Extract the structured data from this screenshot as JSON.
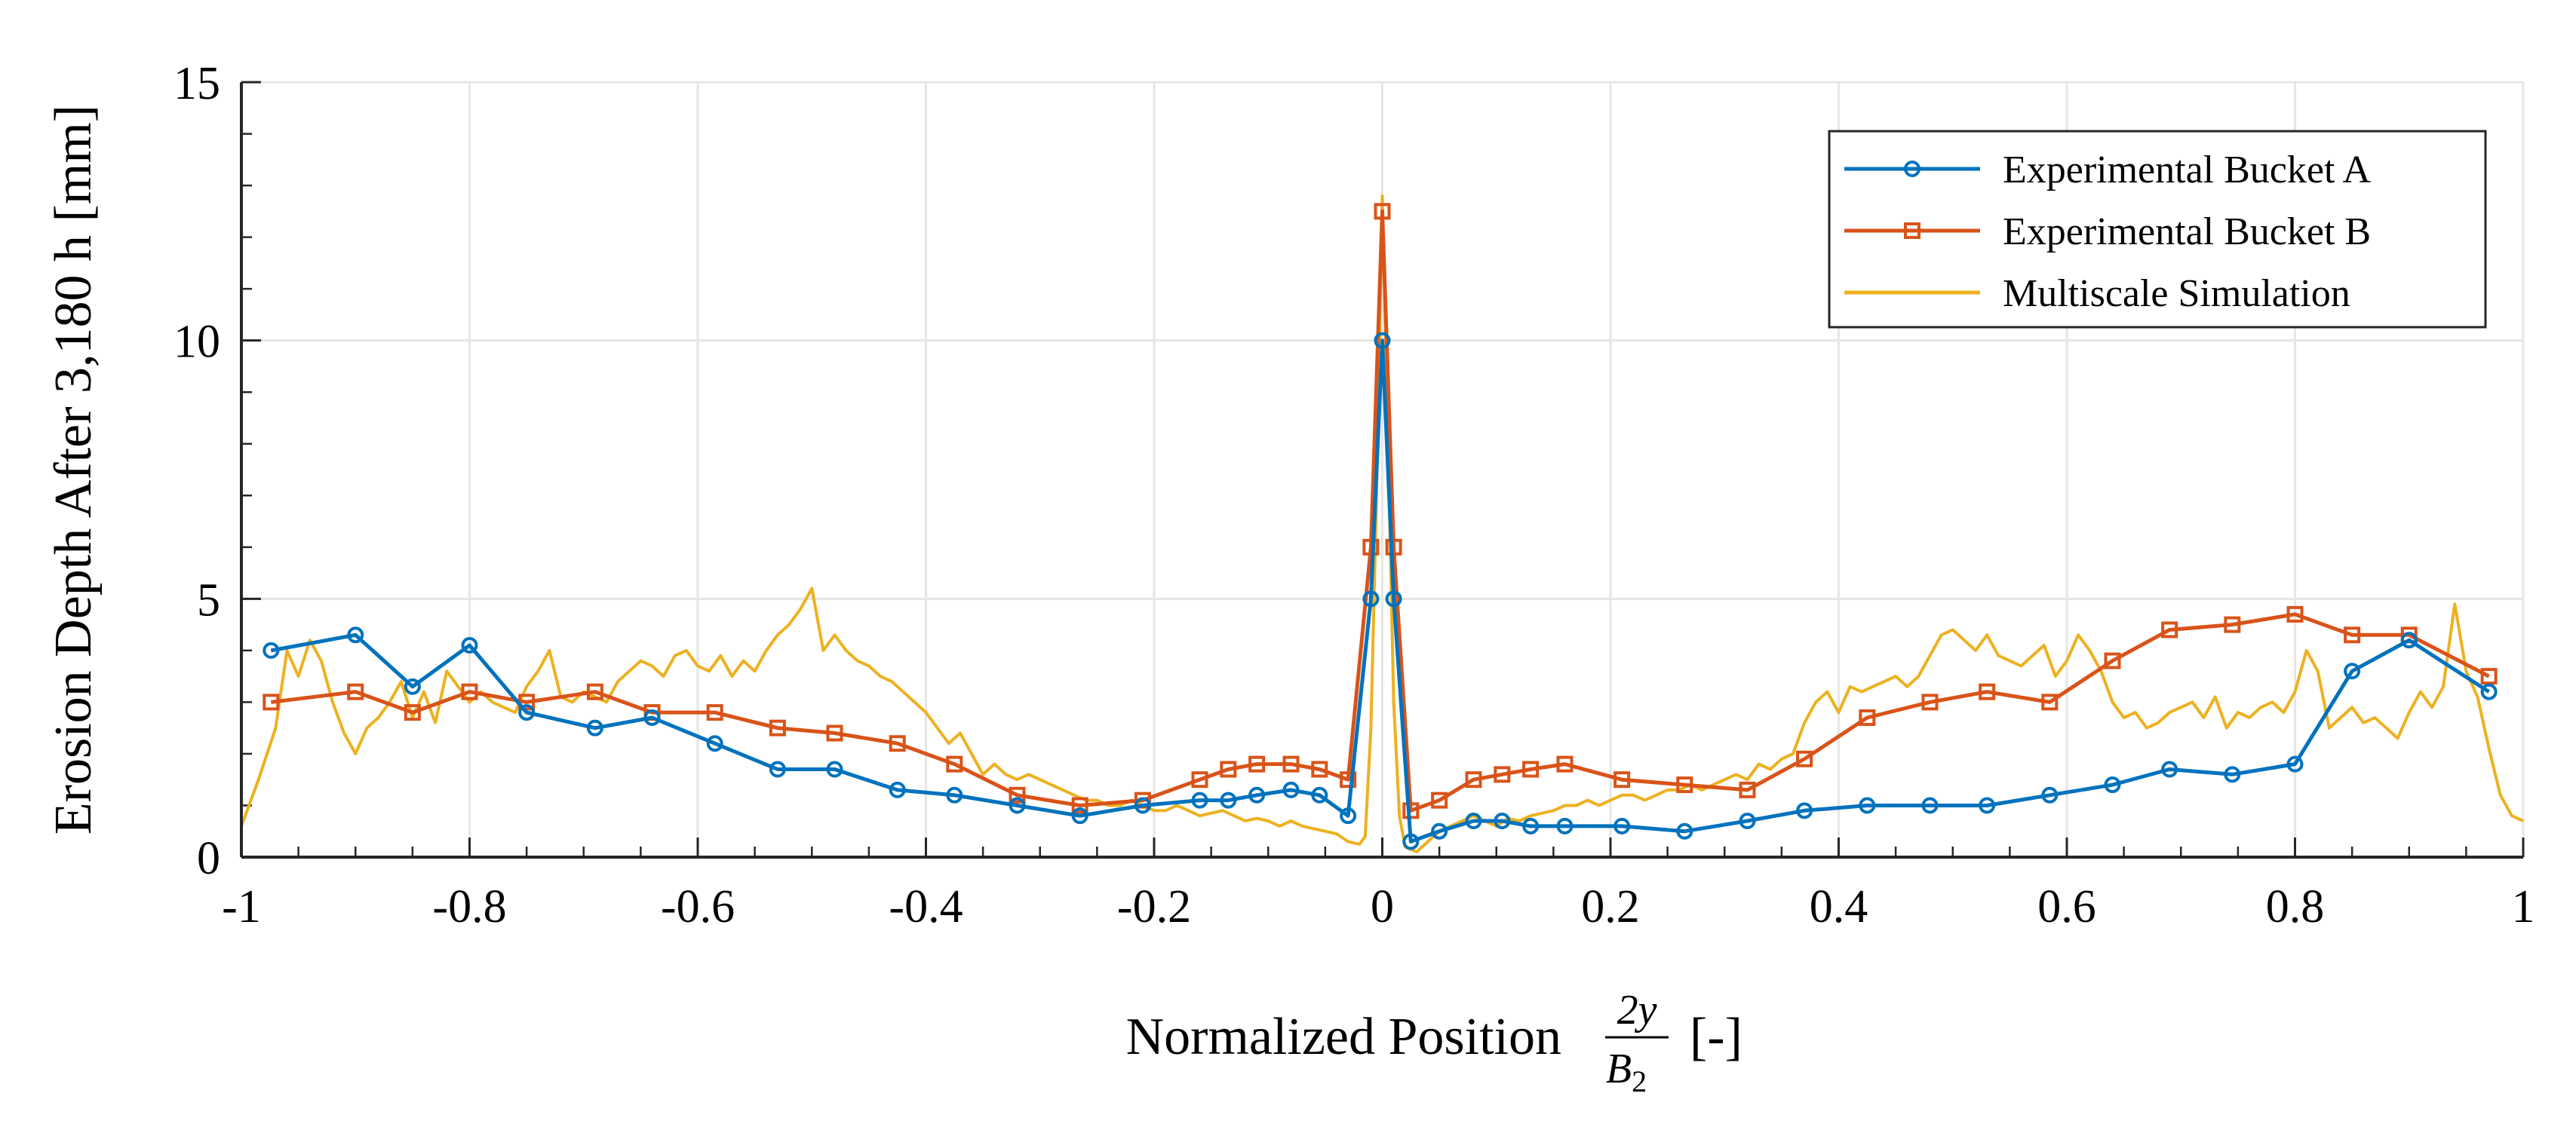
{
  "chart_data": {
    "type": "line",
    "xlabel_prefix": "Normalized Position",
    "xlabel_frac_num": "2y",
    "xlabel_frac_den_var": "B",
    "xlabel_frac_den_sub": "2",
    "xlabel_suffix": "[-]",
    "ylabel": "Erosion Depth After 3,180 h [mm]",
    "xlim": [
      -1,
      1
    ],
    "ylim": [
      0,
      15
    ],
    "xticks": [
      -1,
      -0.8,
      -0.6,
      -0.4,
      -0.2,
      0,
      0.2,
      0.4,
      0.6,
      0.8,
      1
    ],
    "xtick_labels": [
      "-1",
      "-0.8",
      "-0.6",
      "-0.4",
      "-0.2",
      "0",
      "0.2",
      "0.4",
      "0.6",
      "0.8",
      "1"
    ],
    "yticks": [
      0,
      5,
      10,
      15
    ],
    "ytick_labels": [
      "0",
      "5",
      "10",
      "15"
    ],
    "grid": true,
    "legend_position": "top-right",
    "series": [
      {
        "name": "Experimental Bucket A",
        "color": "#0072BD",
        "marker": "circle",
        "x": [
          -0.974,
          -0.9,
          -0.85,
          -0.8,
          -0.75,
          -0.69,
          -0.64,
          -0.585,
          -0.53,
          -0.48,
          -0.425,
          -0.375,
          -0.32,
          -0.265,
          -0.21,
          -0.16,
          -0.135,
          -0.11,
          -0.08,
          -0.055,
          -0.03,
          -0.01,
          0,
          0.01,
          0.025,
          0.05,
          0.08,
          0.105,
          0.13,
          0.16,
          0.21,
          0.265,
          0.32,
          0.37,
          0.425,
          0.48,
          0.53,
          0.585,
          0.64,
          0.69,
          0.745,
          0.8,
          0.85,
          0.9,
          0.97
        ],
        "y": [
          4.0,
          4.3,
          3.3,
          4.1,
          2.8,
          2.5,
          2.7,
          2.2,
          1.7,
          1.7,
          1.3,
          1.2,
          1.0,
          0.8,
          1.0,
          1.1,
          1.1,
          1.2,
          1.3,
          1.2,
          0.8,
          5.0,
          10.0,
          5.0,
          0.3,
          0.5,
          0.7,
          0.7,
          0.6,
          0.6,
          0.6,
          0.5,
          0.7,
          0.9,
          1.0,
          1.0,
          1.0,
          1.2,
          1.4,
          1.7,
          1.6,
          1.8,
          3.6,
          4.2,
          3.2
        ]
      },
      {
        "name": "Experimental Bucket B",
        "color": "#D95319",
        "marker": "square",
        "x": [
          -0.974,
          -0.9,
          -0.85,
          -0.8,
          -0.75,
          -0.69,
          -0.64,
          -0.585,
          -0.53,
          -0.48,
          -0.425,
          -0.375,
          -0.32,
          -0.265,
          -0.21,
          -0.16,
          -0.135,
          -0.11,
          -0.08,
          -0.055,
          -0.03,
          -0.01,
          0,
          0.01,
          0.025,
          0.05,
          0.08,
          0.105,
          0.13,
          0.16,
          0.21,
          0.265,
          0.32,
          0.37,
          0.425,
          0.48,
          0.53,
          0.585,
          0.64,
          0.69,
          0.745,
          0.8,
          0.85,
          0.9,
          0.97
        ],
        "y": [
          3.0,
          3.2,
          2.8,
          3.2,
          3.0,
          3.2,
          2.8,
          2.8,
          2.5,
          2.4,
          2.2,
          1.8,
          1.2,
          1.0,
          1.1,
          1.5,
          1.7,
          1.8,
          1.8,
          1.7,
          1.5,
          6.0,
          12.5,
          6.0,
          0.9,
          1.1,
          1.5,
          1.6,
          1.7,
          1.8,
          1.5,
          1.4,
          1.3,
          1.9,
          2.7,
          3.0,
          3.2,
          3.0,
          3.8,
          4.4,
          4.5,
          4.7,
          4.3,
          4.3,
          3.5
        ]
      },
      {
        "name": "Multiscale Simulation",
        "color": "#EDB120",
        "marker": "none",
        "x": [
          -1.0,
          -0.985,
          -0.97,
          -0.96,
          -0.95,
          -0.94,
          -0.93,
          -0.92,
          -0.91,
          -0.9,
          -0.89,
          -0.88,
          -0.87,
          -0.86,
          -0.85,
          -0.84,
          -0.83,
          -0.82,
          -0.81,
          -0.8,
          -0.79,
          -0.78,
          -0.77,
          -0.76,
          -0.75,
          -0.74,
          -0.73,
          -0.72,
          -0.71,
          -0.7,
          -0.69,
          -0.68,
          -0.67,
          -0.66,
          -0.65,
          -0.64,
          -0.63,
          -0.62,
          -0.61,
          -0.6,
          -0.59,
          -0.58,
          -0.57,
          -0.56,
          -0.55,
          -0.54,
          -0.53,
          -0.52,
          -0.51,
          -0.5,
          -0.49,
          -0.48,
          -0.47,
          -0.46,
          -0.45,
          -0.44,
          -0.43,
          -0.42,
          -0.41,
          -0.4,
          -0.39,
          -0.38,
          -0.37,
          -0.36,
          -0.35,
          -0.34,
          -0.33,
          -0.32,
          -0.31,
          -0.3,
          -0.29,
          -0.28,
          -0.27,
          -0.26,
          -0.25,
          -0.24,
          -0.23,
          -0.22,
          -0.21,
          -0.2,
          -0.19,
          -0.18,
          -0.17,
          -0.16,
          -0.15,
          -0.14,
          -0.13,
          -0.12,
          -0.11,
          -0.1,
          -0.09,
          -0.08,
          -0.07,
          -0.06,
          -0.05,
          -0.04,
          -0.03,
          -0.02,
          -0.015,
          -0.01,
          -0.005,
          0,
          0.005,
          0.01,
          0.015,
          0.02,
          0.025,
          0.03,
          0.04,
          0.05,
          0.06,
          0.07,
          0.08,
          0.09,
          0.1,
          0.11,
          0.12,
          0.13,
          0.14,
          0.15,
          0.16,
          0.17,
          0.18,
          0.19,
          0.2,
          0.21,
          0.22,
          0.23,
          0.24,
          0.25,
          0.26,
          0.27,
          0.28,
          0.29,
          0.3,
          0.31,
          0.32,
          0.33,
          0.34,
          0.35,
          0.36,
          0.37,
          0.38,
          0.39,
          0.4,
          0.41,
          0.42,
          0.43,
          0.44,
          0.45,
          0.46,
          0.47,
          0.48,
          0.49,
          0.5,
          0.51,
          0.52,
          0.53,
          0.54,
          0.55,
          0.56,
          0.57,
          0.58,
          0.59,
          0.6,
          0.61,
          0.62,
          0.63,
          0.64,
          0.65,
          0.66,
          0.67,
          0.68,
          0.69,
          0.7,
          0.71,
          0.72,
          0.73,
          0.74,
          0.75,
          0.76,
          0.77,
          0.78,
          0.79,
          0.8,
          0.81,
          0.82,
          0.83,
          0.84,
          0.85,
          0.86,
          0.87,
          0.88,
          0.89,
          0.9,
          0.91,
          0.92,
          0.93,
          0.94,
          0.95,
          0.96,
          0.97,
          0.98,
          0.99,
          1.0
        ],
        "y": [
          0.6,
          1.5,
          2.5,
          4.0,
          3.5,
          4.2,
          3.8,
          3.0,
          2.4,
          2.0,
          2.5,
          2.7,
          3.0,
          3.4,
          2.7,
          3.2,
          2.6,
          3.6,
          3.3,
          3.0,
          3.2,
          3.0,
          2.9,
          2.8,
          3.3,
          3.6,
          4.0,
          3.1,
          3.0,
          3.2,
          3.1,
          3.0,
          3.4,
          3.6,
          3.8,
          3.7,
          3.5,
          3.9,
          4.0,
          3.7,
          3.6,
          3.9,
          3.5,
          3.8,
          3.6,
          4.0,
          4.3,
          4.5,
          4.8,
          5.2,
          4.0,
          4.3,
          4.0,
          3.8,
          3.7,
          3.5,
          3.4,
          3.2,
          3.0,
          2.8,
          2.5,
          2.2,
          2.4,
          2.0,
          1.6,
          1.8,
          1.6,
          1.5,
          1.6,
          1.5,
          1.4,
          1.3,
          1.2,
          1.1,
          1.1,
          1.0,
          1.0,
          1.1,
          1.0,
          0.9,
          0.9,
          1.0,
          0.9,
          0.8,
          0.85,
          0.9,
          0.8,
          0.7,
          0.75,
          0.7,
          0.6,
          0.7,
          0.6,
          0.55,
          0.5,
          0.45,
          0.3,
          0.25,
          0.4,
          2.5,
          7.0,
          12.8,
          8.0,
          3.0,
          0.8,
          0.2,
          0.15,
          0.1,
          0.3,
          0.5,
          0.6,
          0.7,
          0.8,
          0.7,
          0.6,
          0.75,
          0.7,
          0.8,
          0.85,
          0.9,
          1.0,
          1.0,
          1.1,
          1.0,
          1.1,
          1.2,
          1.2,
          1.1,
          1.2,
          1.3,
          1.3,
          1.4,
          1.3,
          1.4,
          1.5,
          1.6,
          1.5,
          1.8,
          1.7,
          1.9,
          2.0,
          2.6,
          3.0,
          3.2,
          2.8,
          3.3,
          3.2,
          3.3,
          3.4,
          3.5,
          3.3,
          3.5,
          3.9,
          4.3,
          4.4,
          4.2,
          4.0,
          4.3,
          3.9,
          3.8,
          3.7,
          3.9,
          4.1,
          3.5,
          3.8,
          4.3,
          4.0,
          3.6,
          3.0,
          2.7,
          2.8,
          2.5,
          2.6,
          2.8,
          2.9,
          3.0,
          2.7,
          3.1,
          2.5,
          2.8,
          2.7,
          2.9,
          3.0,
          2.8,
          3.2,
          4.0,
          3.6,
          2.5,
          2.7,
          2.9,
          2.6,
          2.7,
          2.5,
          2.3,
          2.8,
          3.2,
          2.9,
          3.3,
          4.9,
          3.6,
          3.1,
          2.1,
          1.2,
          0.8,
          0.7
        ]
      }
    ]
  }
}
